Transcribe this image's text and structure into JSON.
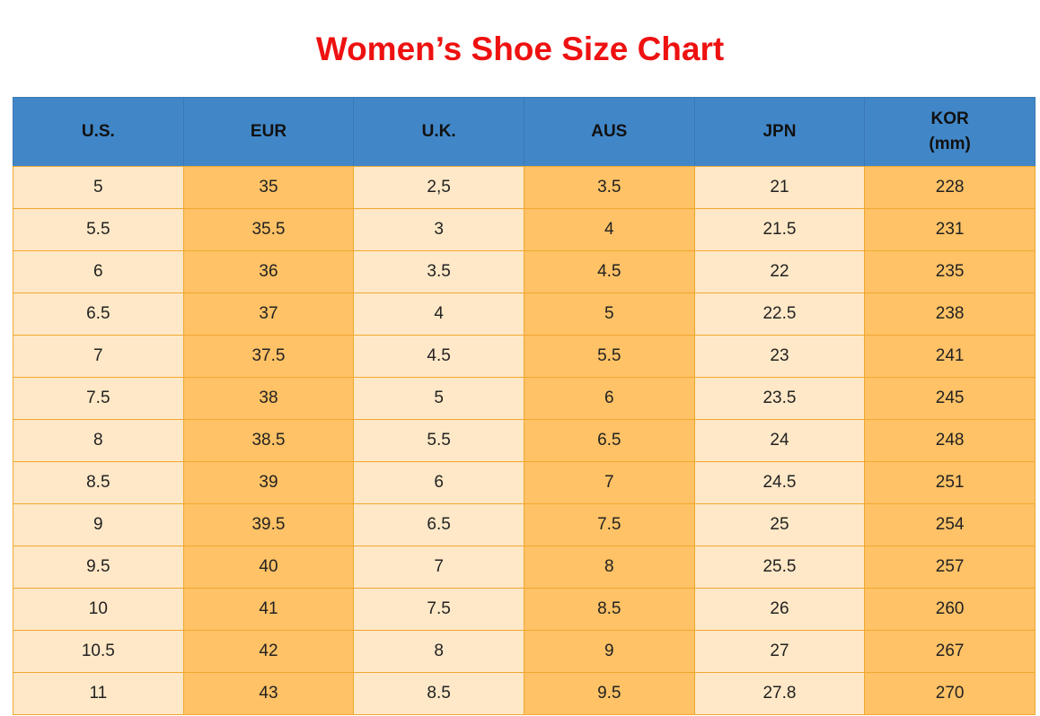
{
  "title": "Women’s Shoe Size Chart",
  "colors": {
    "title": "#ee1111",
    "header_bg": "#4187c8",
    "cell_light": "#ffe8c7",
    "cell_dark": "#ffc266",
    "border": "#f0a830"
  },
  "table": {
    "headers": [
      {
        "lines": [
          "U.S."
        ]
      },
      {
        "lines": [
          "EUR"
        ]
      },
      {
        "lines": [
          "U.K."
        ]
      },
      {
        "lines": [
          "AUS"
        ]
      },
      {
        "lines": [
          "JPN"
        ]
      },
      {
        "lines": [
          "KOR",
          "(mm)"
        ]
      }
    ],
    "rows": [
      [
        "5",
        "35",
        "2,5",
        "3.5",
        "21",
        "228"
      ],
      [
        "5.5",
        "35.5",
        "3",
        "4",
        "21.5",
        "231"
      ],
      [
        "6",
        "36",
        "3.5",
        "4.5",
        "22",
        "235"
      ],
      [
        "6.5",
        "37",
        "4",
        "5",
        "22.5",
        "238"
      ],
      [
        "7",
        "37.5",
        "4.5",
        "5.5",
        "23",
        "241"
      ],
      [
        "7.5",
        "38",
        "5",
        "6",
        "23.5",
        "245"
      ],
      [
        "8",
        "38.5",
        "5.5",
        "6.5",
        "24",
        "248"
      ],
      [
        "8.5",
        "39",
        "6",
        "7",
        "24.5",
        "251"
      ],
      [
        "9",
        "39.5",
        "6.5",
        "7.5",
        "25",
        "254"
      ],
      [
        "9.5",
        "40",
        "7",
        "8",
        "25.5",
        "257"
      ],
      [
        "10",
        "41",
        "7.5",
        "8.5",
        "26",
        "260"
      ],
      [
        "10.5",
        "42",
        "8",
        "9",
        "27",
        "267"
      ],
      [
        "11",
        "43",
        "8.5",
        "9.5",
        "27.8",
        "270"
      ]
    ]
  }
}
